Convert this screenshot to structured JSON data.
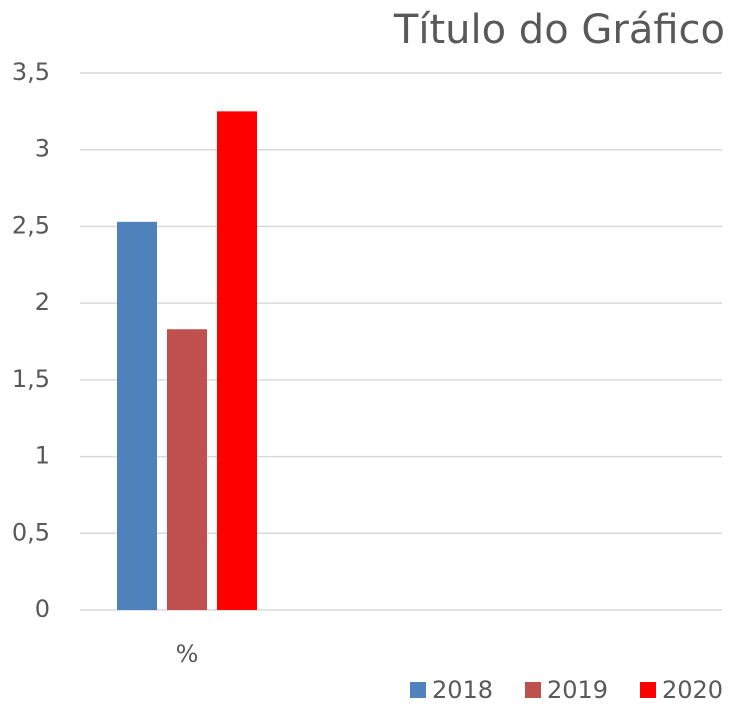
{
  "chart_data": {
    "type": "bar",
    "title": "Título do Gráfico",
    "categories": [
      "%",
      null,
      null
    ],
    "series": [
      {
        "name": "2018",
        "color": "#4f81bd",
        "values": [
          2.53,
          null,
          null
        ]
      },
      {
        "name": "2019",
        "color": "#c0504d",
        "values": [
          1.83,
          null,
          null
        ]
      },
      {
        "name": "2020",
        "color": "#ff0000",
        "values": [
          3.25,
          null,
          null
        ]
      }
    ],
    "ylim": [
      0,
      3.5
    ],
    "yticks": [
      0,
      {
        "value": 0.5,
        "label": "0,5"
      },
      1,
      {
        "value": 1.5,
        "label": "1,5"
      },
      2,
      {
        "value": 2.5,
        "label": "2,5"
      },
      3,
      {
        "value": 3.5,
        "label": "3,5"
      }
    ],
    "grid": true,
    "legend": "bottom-right"
  }
}
